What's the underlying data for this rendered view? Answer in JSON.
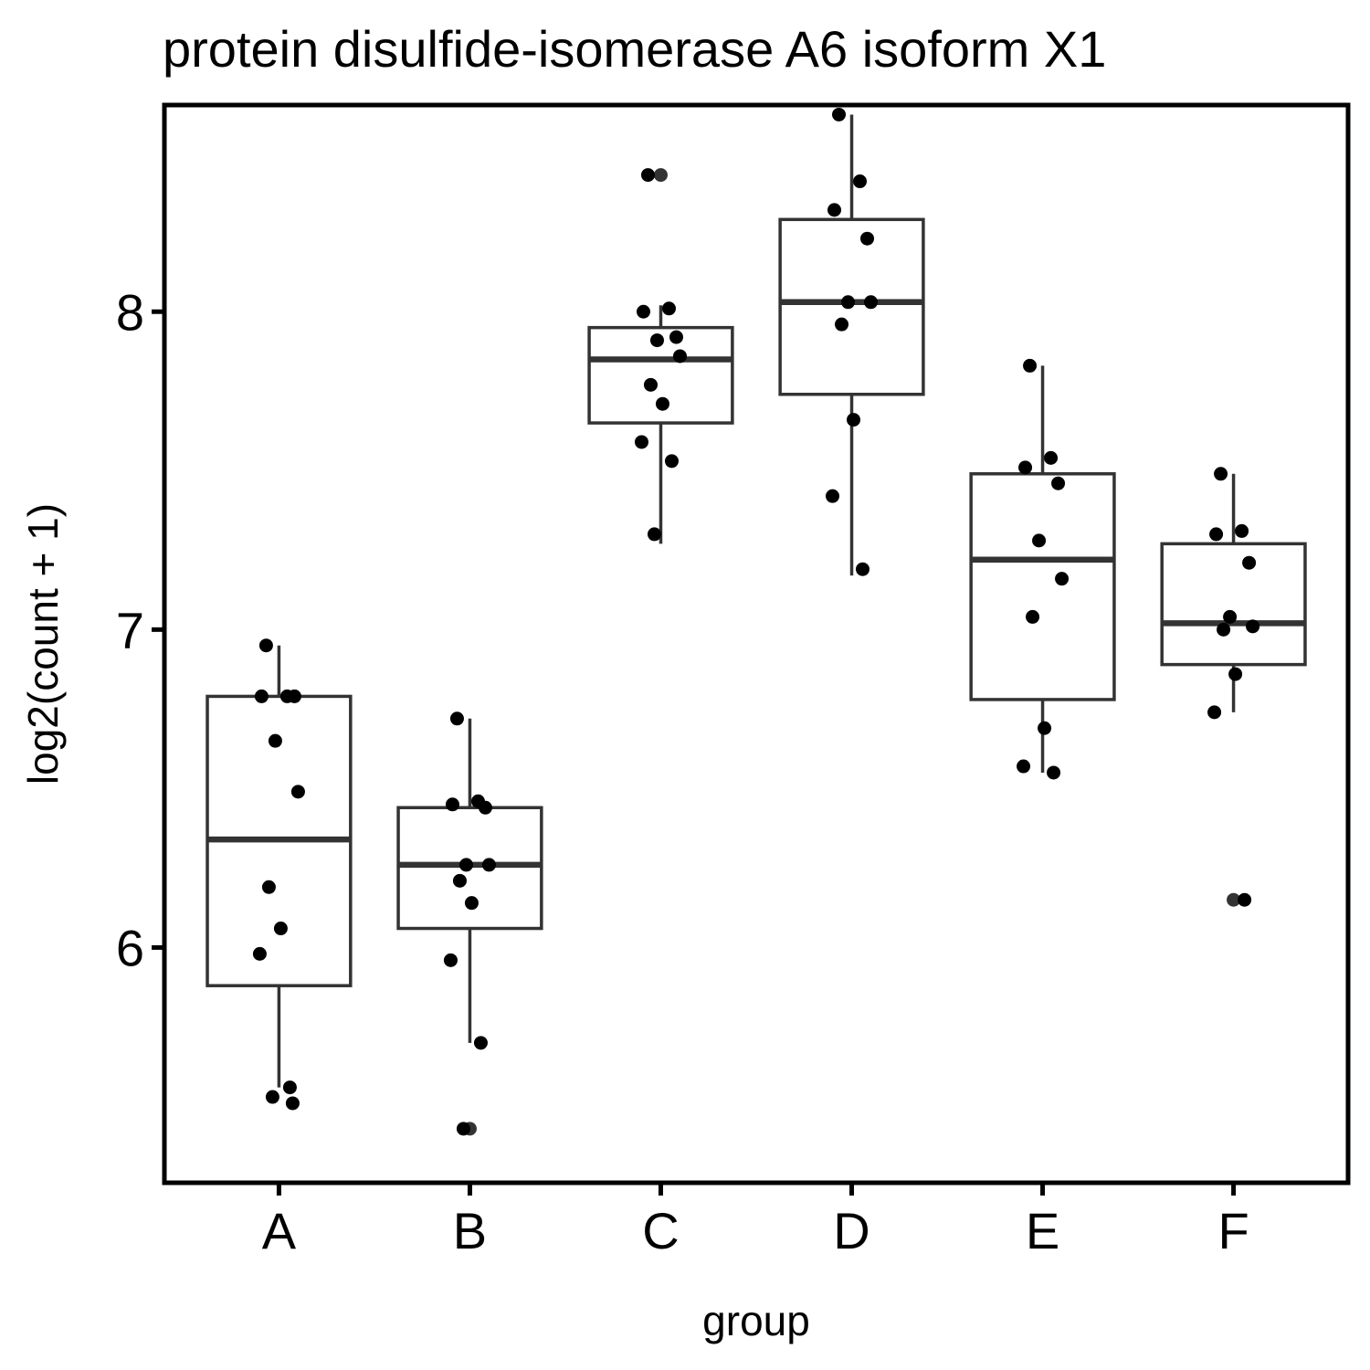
{
  "chart_data": {
    "type": "box",
    "title": "protein disulfide-isomerase A6 isoform X1",
    "xlabel": "group",
    "ylabel": "log2(count + 1)",
    "ylim": [
      5.26,
      8.65
    ],
    "yticks": [
      6,
      7,
      8
    ],
    "grid": false,
    "legend": "none",
    "categories": [
      "A",
      "B",
      "C",
      "D",
      "E",
      "F"
    ],
    "boxes": [
      {
        "group": "A",
        "lower_whisker": 5.56,
        "q1": 5.88,
        "median": 6.34,
        "q3": 6.79,
        "upper_whisker": 6.95,
        "outliers": []
      },
      {
        "group": "B",
        "lower_whisker": 5.7,
        "q1": 6.06,
        "median": 6.26,
        "q3": 6.44,
        "upper_whisker": 6.72,
        "outliers": [
          5.43
        ]
      },
      {
        "group": "C",
        "lower_whisker": 7.27,
        "q1": 7.65,
        "median": 7.85,
        "q3": 7.95,
        "upper_whisker": 8.02,
        "outliers": [
          8.43
        ]
      },
      {
        "group": "D",
        "lower_whisker": 7.17,
        "q1": 7.74,
        "median": 8.03,
        "q3": 8.29,
        "upper_whisker": 8.62,
        "outliers": []
      },
      {
        "group": "E",
        "lower_whisker": 6.55,
        "q1": 6.78,
        "median": 7.22,
        "q3": 7.49,
        "upper_whisker": 7.83,
        "outliers": []
      },
      {
        "group": "F",
        "lower_whisker": 6.74,
        "q1": 6.89,
        "median": 7.02,
        "q3": 7.27,
        "upper_whisker": 7.49,
        "outliers": [
          6.15
        ]
      }
    ],
    "points": [
      {
        "group": "A",
        "values": [
          6.95,
          6.79,
          6.79,
          6.79,
          6.65,
          6.49,
          6.19,
          6.06,
          5.98,
          5.56,
          5.53,
          5.51
        ]
      },
      {
        "group": "B",
        "values": [
          6.72,
          6.46,
          6.45,
          6.44,
          6.26,
          6.26,
          6.21,
          6.14,
          5.96,
          5.7,
          5.43
        ]
      },
      {
        "group": "C",
        "values": [
          8.43,
          8.01,
          8.0,
          7.92,
          7.91,
          7.86,
          7.77,
          7.71,
          7.59,
          7.53,
          7.3
        ]
      },
      {
        "group": "D",
        "values": [
          8.62,
          8.41,
          8.32,
          8.23,
          8.03,
          8.03,
          7.96,
          7.66,
          7.42,
          7.19
        ]
      },
      {
        "group": "E",
        "values": [
          7.83,
          7.54,
          7.51,
          7.46,
          7.28,
          7.16,
          7.04,
          6.69,
          6.57,
          6.55
        ]
      },
      {
        "group": "F",
        "values": [
          7.49,
          7.31,
          7.3,
          7.21,
          7.04,
          7.01,
          7.0,
          6.86,
          6.74,
          6.15
        ]
      }
    ]
  }
}
